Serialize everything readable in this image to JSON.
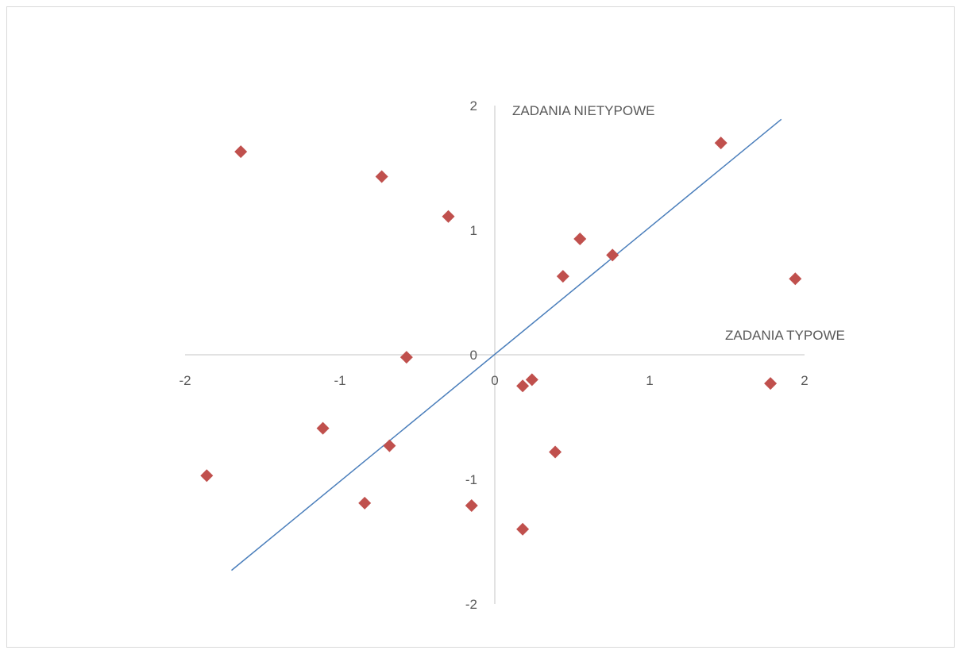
{
  "chart_data": {
    "type": "scatter",
    "title": "",
    "xlabel": "ZADANIA TYPOWE",
    "ylabel": "ZADANIA NIETYPOWE",
    "xlim": [
      -2,
      2
    ],
    "ylim": [
      -2,
      2
    ],
    "x_ticks": [
      "-2",
      "-1",
      "0",
      "1",
      "2"
    ],
    "y_ticks": [
      "-2",
      "-1",
      "0",
      "1",
      "2"
    ],
    "grid": false,
    "legend": "none",
    "colors": {
      "points": "#c0504d",
      "trend": "#4a7ebb",
      "axis": "#d9d9d9",
      "text": "#595959"
    },
    "series": [
      {
        "marker": "diamond",
        "points": [
          {
            "x": -1.64,
            "y": 1.63
          },
          {
            "x": -0.73,
            "y": 1.43
          },
          {
            "x": -0.3,
            "y": 1.11
          },
          {
            "x": 1.46,
            "y": 1.7
          },
          {
            "x": 0.55,
            "y": 0.93
          },
          {
            "x": 0.76,
            "y": 0.8
          },
          {
            "x": 0.44,
            "y": 0.63
          },
          {
            "x": 1.94,
            "y": 0.61
          },
          {
            "x": -0.57,
            "y": -0.02
          },
          {
            "x": 0.18,
            "y": -0.25
          },
          {
            "x": 0.24,
            "y": -0.2
          },
          {
            "x": 1.78,
            "y": -0.23
          },
          {
            "x": -1.11,
            "y": -0.59
          },
          {
            "x": -0.68,
            "y": -0.73
          },
          {
            "x": 0.39,
            "y": -0.78
          },
          {
            "x": -1.86,
            "y": -0.97
          },
          {
            "x": -0.84,
            "y": -1.19
          },
          {
            "x": -0.15,
            "y": -1.21
          },
          {
            "x": 0.18,
            "y": -1.4
          }
        ]
      }
    ],
    "trendline": {
      "from": {
        "x": -1.7,
        "y": -1.73
      },
      "to": {
        "x": 1.85,
        "y": 1.89
      }
    }
  }
}
